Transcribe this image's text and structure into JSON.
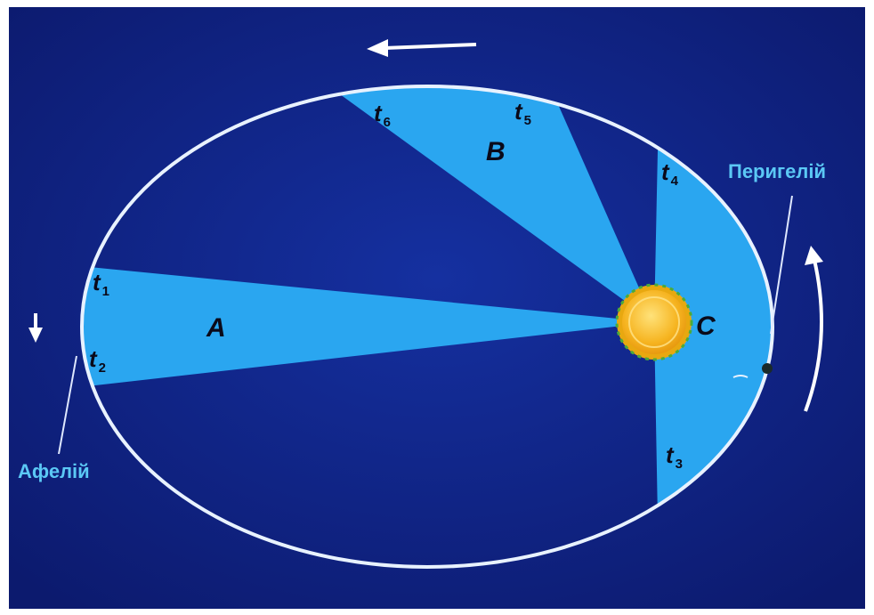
{
  "labels": {
    "perihelion": "Перигелій",
    "aphelion": "Афелій"
  },
  "regions": {
    "a": "A",
    "b": "B",
    "c": "C"
  },
  "times": [
    {
      "base": "t",
      "sub": "1"
    },
    {
      "base": "t",
      "sub": "2"
    },
    {
      "base": "t",
      "sub": "3"
    },
    {
      "base": "t",
      "sub": "4"
    },
    {
      "base": "t",
      "sub": "5"
    },
    {
      "base": "t",
      "sub": "6"
    }
  ],
  "colors": {
    "background": "#0f1f7a",
    "sector": "#2aa6f0",
    "orbit": "#e8f2ff",
    "sun": "#f5b21f",
    "callout_text": "#5bc8f5"
  },
  "icons": {
    "sun": "sun-icon",
    "direction_arrows": "arrow-icon"
  }
}
